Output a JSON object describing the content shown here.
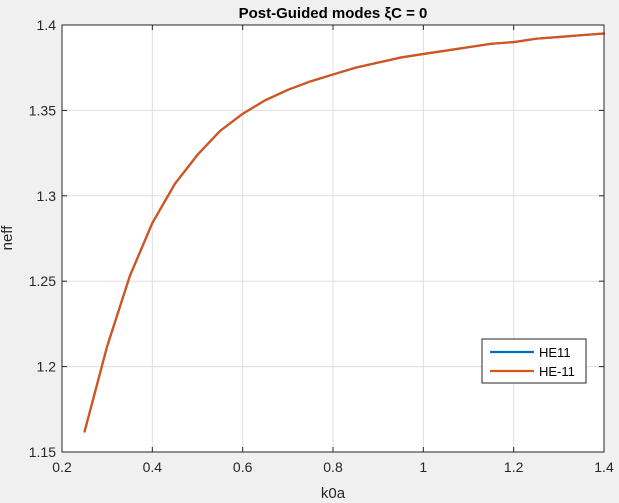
{
  "chart_data": {
    "type": "line",
    "title": "Post-Guided modes ξC = 0",
    "xlabel": "k0a",
    "ylabel": "neff",
    "xlim": [
      0.2,
      1.4
    ],
    "ylim": [
      1.15,
      1.4
    ],
    "xticks": [
      0.2,
      0.4,
      0.6,
      0.8,
      1,
      1.2,
      1.4
    ],
    "yticks": [
      1.15,
      1.2,
      1.25,
      1.3,
      1.35,
      1.4
    ],
    "grid": true,
    "legend_position": "bottom-right",
    "series": [
      {
        "name": "HE11",
        "color": "#0072bd",
        "x": [
          0.25,
          0.3,
          0.35,
          0.4,
          0.45,
          0.5,
          0.55,
          0.6,
          0.65,
          0.7,
          0.75,
          0.8,
          0.85,
          0.9,
          0.95,
          1.0,
          1.05,
          1.1,
          1.15,
          1.2,
          1.25,
          1.3,
          1.35,
          1.4
        ],
        "y": [
          1.162,
          1.212,
          1.253,
          1.284,
          1.307,
          1.324,
          1.338,
          1.348,
          1.356,
          1.362,
          1.367,
          1.371,
          1.375,
          1.378,
          1.381,
          1.383,
          1.385,
          1.387,
          1.389,
          1.39,
          1.392,
          1.393,
          1.394,
          1.395
        ]
      },
      {
        "name": "HE-11",
        "color": "#d95319",
        "x": [
          0.25,
          0.3,
          0.35,
          0.4,
          0.45,
          0.5,
          0.55,
          0.6,
          0.65,
          0.7,
          0.75,
          0.8,
          0.85,
          0.9,
          0.95,
          1.0,
          1.05,
          1.1,
          1.15,
          1.2,
          1.25,
          1.3,
          1.35,
          1.4
        ],
        "y": [
          1.162,
          1.212,
          1.253,
          1.284,
          1.307,
          1.324,
          1.338,
          1.348,
          1.356,
          1.362,
          1.367,
          1.371,
          1.375,
          1.378,
          1.381,
          1.383,
          1.385,
          1.387,
          1.389,
          1.39,
          1.392,
          1.393,
          1.394,
          1.395
        ]
      }
    ]
  }
}
